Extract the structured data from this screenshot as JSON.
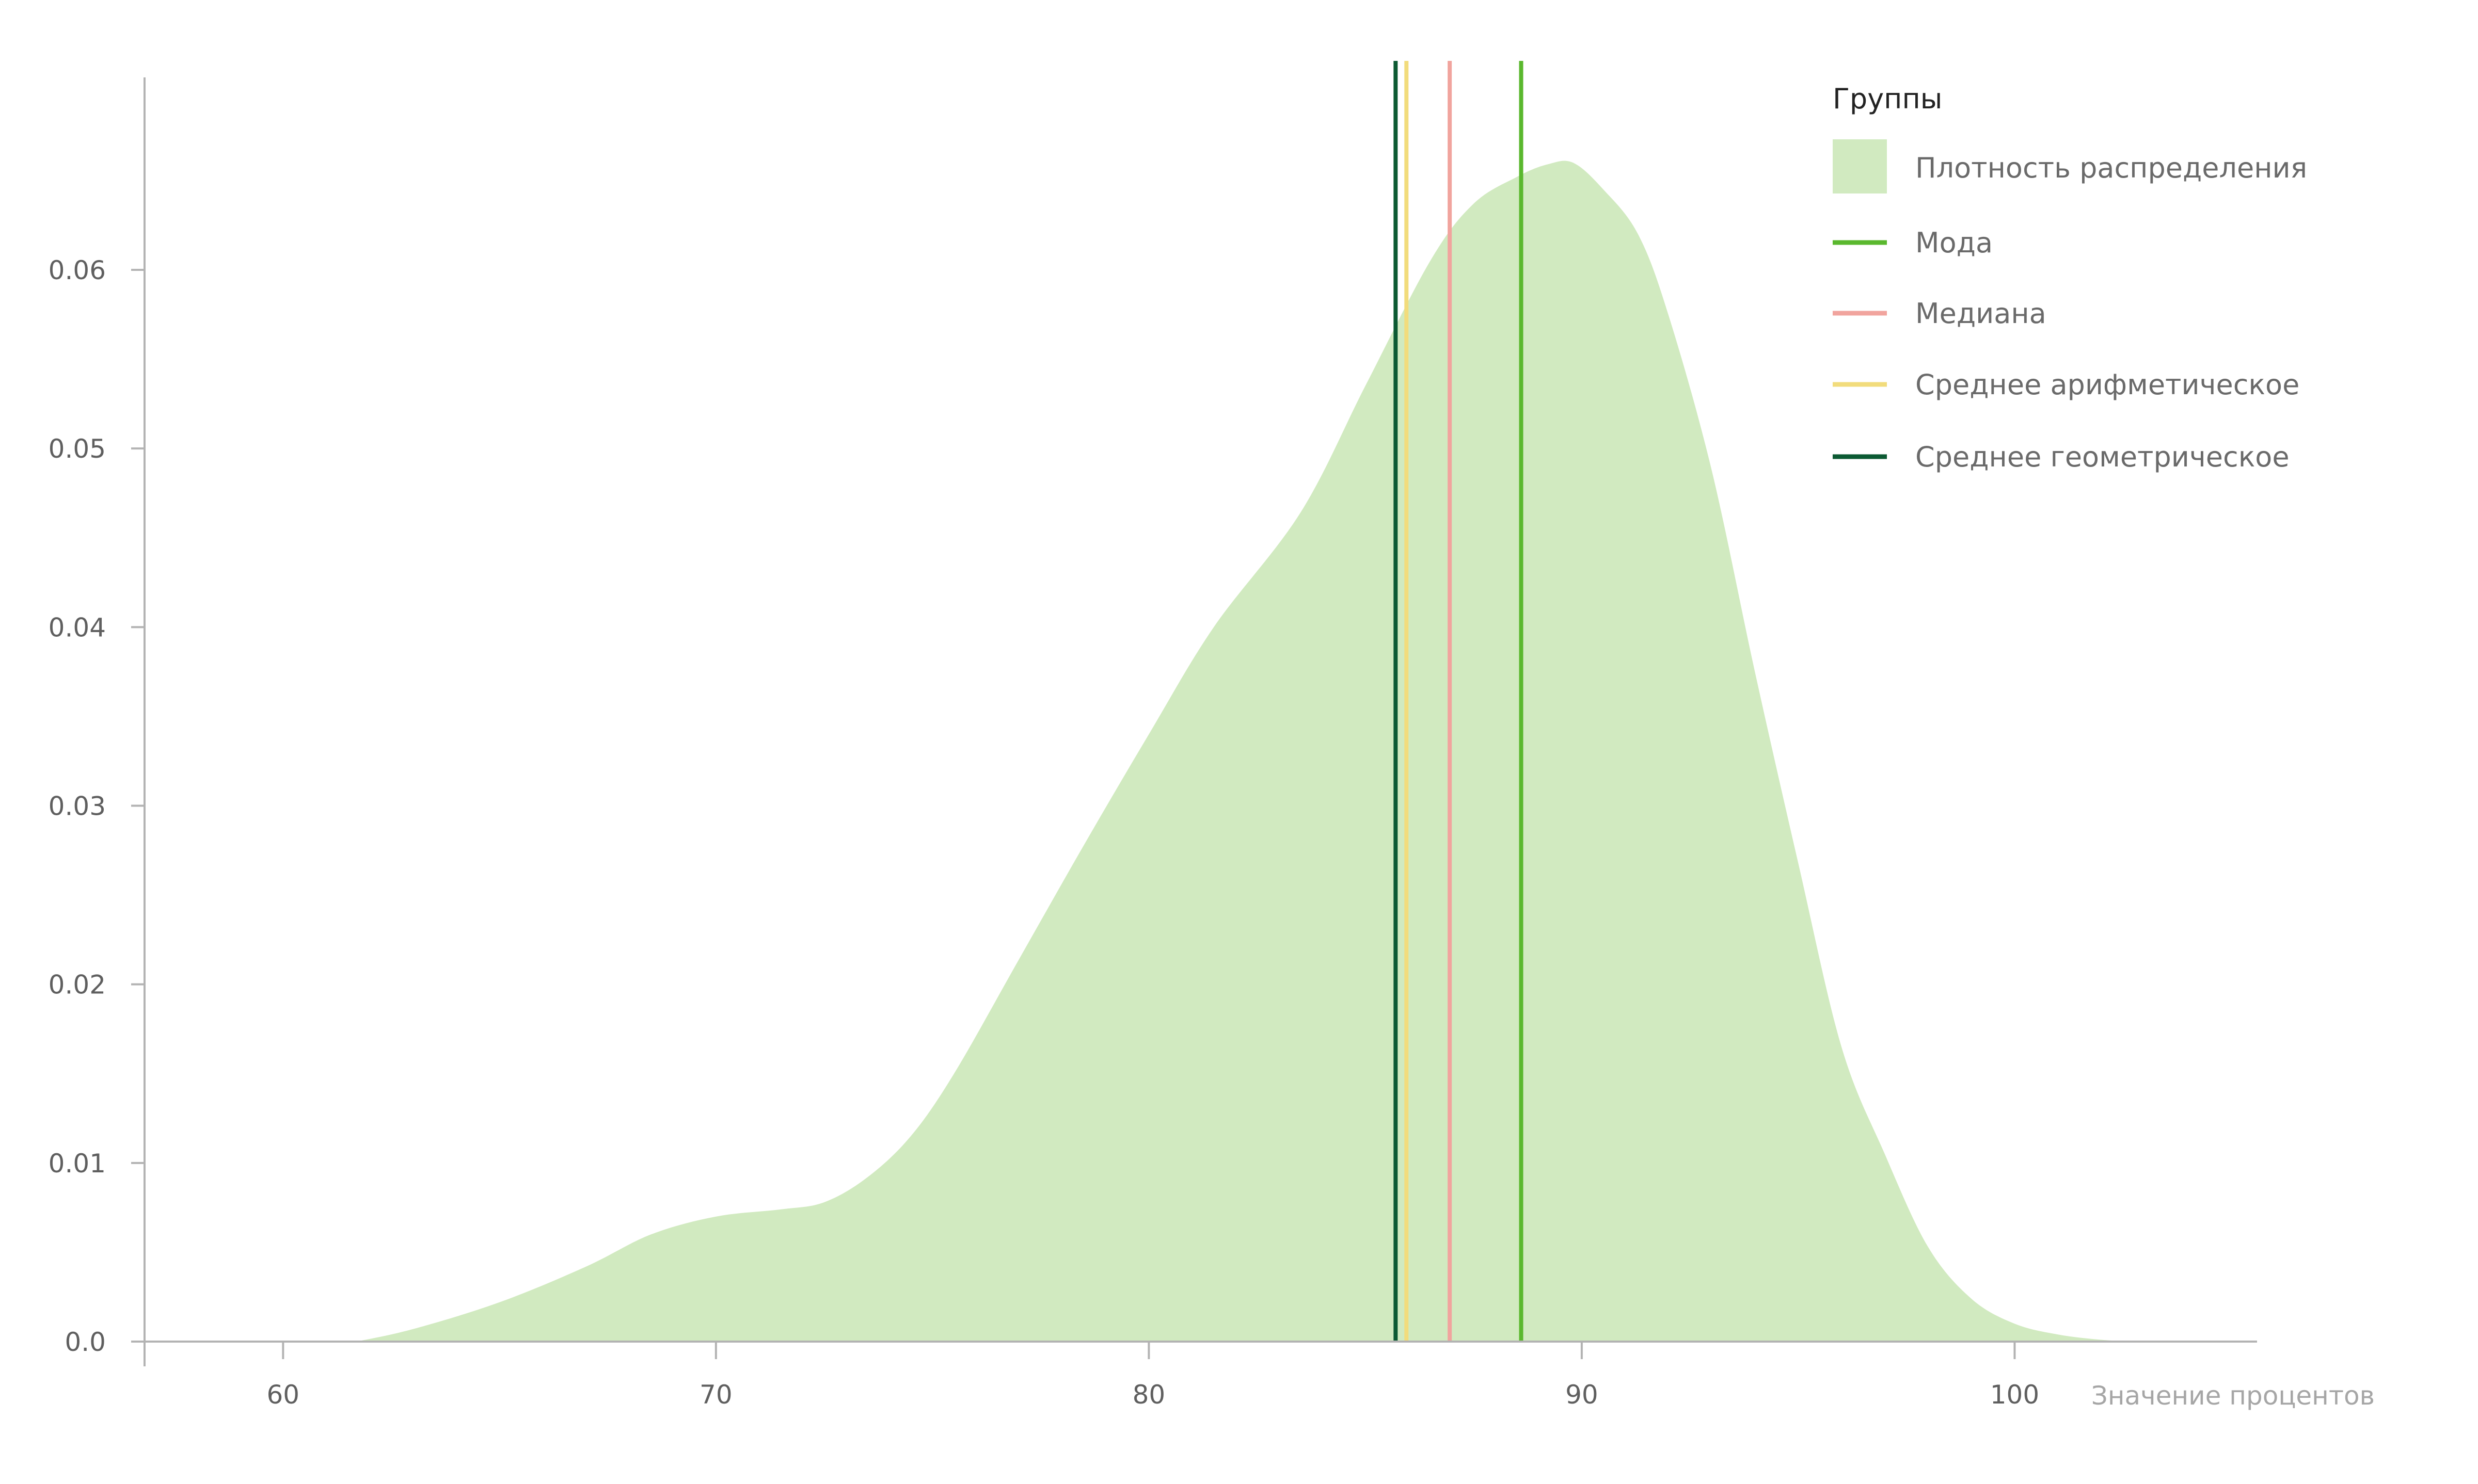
{
  "chart_data": {
    "type": "area",
    "title": "",
    "xlabel": "Значение процентов",
    "ylabel": "",
    "xlim": [
      56.8,
      105.6
    ],
    "ylim": [
      0,
      0.0717
    ],
    "xticks": [
      60,
      70,
      80,
      90,
      100
    ],
    "xtick_labels": [
      "60",
      "70",
      "80",
      "90",
      "100"
    ],
    "yticks": [
      0,
      0.01,
      0.02,
      0.03,
      0.04,
      0.05,
      0.06
    ],
    "ytick_labels": [
      "0.0",
      "0.01",
      "0.02",
      "0.03",
      "0.04",
      "0.05",
      "0.06"
    ],
    "grid": false,
    "legend": {
      "title": "Группы",
      "placement": "top-right"
    },
    "series": [
      {
        "name": "Плотность распределения",
        "kind": "density",
        "color": "#d1eac0",
        "x": [
          61.7,
          63,
          65,
          67,
          68.5,
          70,
          71.5,
          72.5,
          73.5,
          74.5,
          75.5,
          77,
          78.5,
          80,
          81.5,
          83.5,
          85,
          86.5,
          87.5,
          88.5,
          89.2,
          89.8,
          90.5,
          91.3,
          92,
          93,
          94,
          95,
          96,
          97,
          98,
          99,
          100,
          101,
          102,
          102.8
        ],
        "y": [
          0.0,
          0.0007,
          0.0022,
          0.0042,
          0.006,
          0.007,
          0.0074,
          0.0078,
          0.0092,
          0.0115,
          0.015,
          0.0214,
          0.0278,
          0.034,
          0.04,
          0.0464,
          0.0535,
          0.0605,
          0.0637,
          0.0652,
          0.0659,
          0.066,
          0.0645,
          0.062,
          0.0575,
          0.0488,
          0.0375,
          0.0268,
          0.0165,
          0.0105,
          0.0053,
          0.0024,
          0.001,
          0.0004,
          0.0001,
          0.0
        ]
      },
      {
        "name": "Мода",
        "kind": "vline",
        "x": 88.6,
        "color": "#5ab82e"
      },
      {
        "name": "Медиана",
        "kind": "vline",
        "x": 86.95,
        "color": "#f1a49e"
      },
      {
        "name": "Среднее арифметическое",
        "kind": "vline",
        "x": 85.95,
        "color": "#f2dc7c"
      },
      {
        "name": "Среднее геометрическое",
        "kind": "vline",
        "x": 85.7,
        "color": "#0c5a33"
      }
    ]
  }
}
